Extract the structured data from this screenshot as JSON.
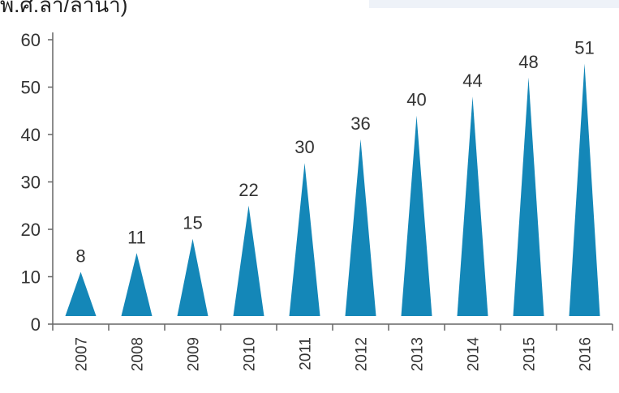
{
  "header": {
    "cropped_text": "พ.ศ.ลำ/ลำน้ำ)"
  },
  "colors": {
    "bar": "#1487b8",
    "axis": "#666666"
  },
  "chart_data": {
    "type": "bar",
    "mark_shape": "triangle",
    "title": "",
    "xlabel": "",
    "ylabel": "",
    "categories": [
      "2007",
      "2008",
      "2009",
      "2010",
      "2011",
      "2012",
      "2013",
      "2014",
      "2015",
      "2016"
    ],
    "values": [
      8,
      11,
      15,
      22,
      30,
      36,
      40,
      44,
      48,
      51
    ],
    "data_labels": [
      "8",
      "11",
      "15",
      "22",
      "30",
      "36",
      "40",
      "44",
      "48",
      "51"
    ],
    "mark_heights": [
      11,
      15,
      18,
      25,
      34,
      39,
      44,
      48,
      52,
      55
    ],
    "ylim": [
      0,
      60
    ],
    "yticks": [
      "0",
      "10",
      "20",
      "30",
      "40",
      "50",
      "60"
    ],
    "grid": false,
    "legend": false
  }
}
